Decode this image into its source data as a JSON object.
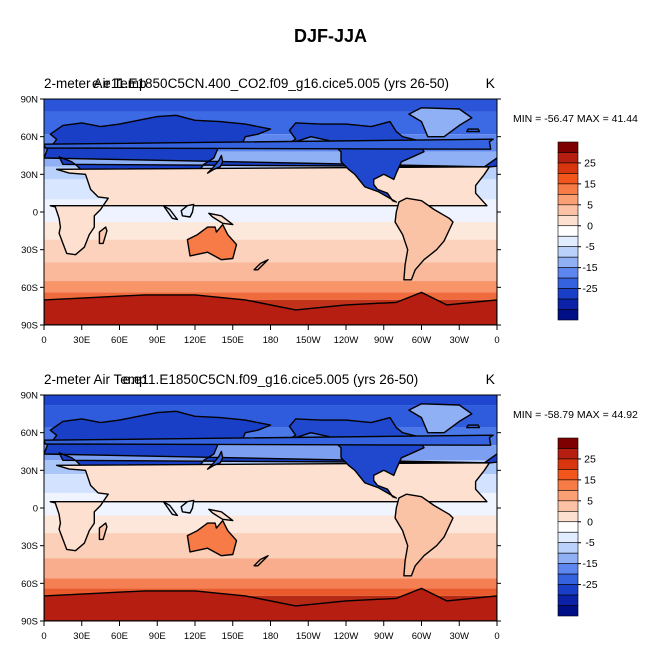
{
  "title": "DJF-JJA",
  "panels": [
    {
      "left_label": "2-meter Air Temp",
      "center_label": "e.e11.E1850C5CN.400_CO2.f09_g16.cice5.005 (yrs 26-50)",
      "units": "K",
      "stats": "MIN = -56.47 MAX =  41.44",
      "min": -56.47,
      "max": 41.44
    },
    {
      "left_label": "2-meter Air Temp",
      "center_label": "e.e11.E1850C5CN.f09_g16.cice5.005 (yrs 26-50)",
      "units": "K",
      "stats": "MIN = -58.79 MAX =  44.92",
      "min": -58.79,
      "max": 44.92
    }
  ],
  "axes": {
    "lat_ticks": [
      "90N",
      "60N",
      "30N",
      "0",
      "30S",
      "60S",
      "90S"
    ],
    "lon_ticks": [
      "0",
      "30E",
      "60E",
      "90E",
      "120E",
      "150E",
      "180",
      "150W",
      "120W",
      "90W",
      "60W",
      "30W",
      "0"
    ]
  },
  "colorbar": {
    "labels": [
      "25",
      "15",
      "5",
      "0",
      "-5",
      "-15",
      "-25"
    ],
    "colors_top_to_bottom": [
      "#7f0000",
      "#b51e10",
      "#d9360f",
      "#f2561c",
      "#f77b46",
      "#faa074",
      "#fdc2a5",
      "#fde0d0",
      "#ffffff",
      "#e0ecff",
      "#bad2fb",
      "#8fb0f5",
      "#5d86ee",
      "#3563e0",
      "#1a3fc7",
      "#0b22a8",
      "#000f88"
    ]
  },
  "chart_data": {
    "type": "heatmap",
    "title": "DJF-JJA",
    "variable": "2-meter Air Temp",
    "units": "K",
    "projection": "cylindrical equidistant, centered 180",
    "x_ticks": [
      "0",
      "30E",
      "60E",
      "90E",
      "120E",
      "150E",
      "180",
      "150W",
      "120W",
      "90W",
      "60W",
      "30W",
      "0"
    ],
    "y_ticks": [
      "90N",
      "60N",
      "30N",
      "0",
      "30S",
      "60S",
      "90S"
    ],
    "xlim": [
      0,
      360
    ],
    "ylim": [
      -90,
      90
    ],
    "contour_levels": [
      -35,
      -30,
      -25,
      -20,
      -15,
      -10,
      -5,
      -2.5,
      0,
      2.5,
      5,
      10,
      15,
      20,
      25,
      30
    ],
    "colorbar_labels": [
      "25",
      "15",
      "5",
      "0",
      "-5",
      "-15",
      "-25"
    ],
    "series": [
      {
        "name": "e.e11.E1850C5CN.400_CO2.f09_g16.cice5.005 (yrs 26-50)",
        "min": -56.47,
        "max": 41.44
      },
      {
        "name": "e.e11.E1850C5CN.f09_g16.cice5.005 (yrs 26-50)",
        "min": -58.79,
        "max": 44.92
      }
    ]
  }
}
